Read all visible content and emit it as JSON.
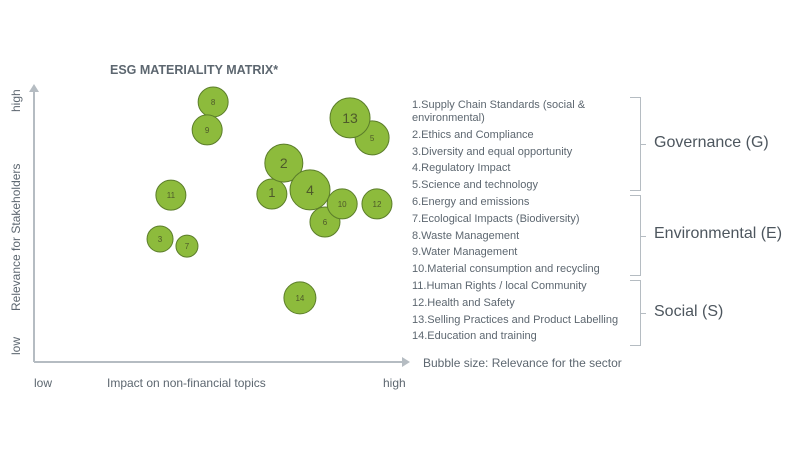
{
  "chart_data": {
    "type": "scatter",
    "subtype": "bubble",
    "title": "ESG MATERIALITY MATRIX*",
    "xlabel": "Impact on non-financial topics",
    "ylabel": "Relevance for Stakeholders",
    "x_tick_labels": [
      "low",
      "high"
    ],
    "y_tick_labels": [
      "low",
      "high"
    ],
    "xlim": [
      0,
      100
    ],
    "ylim": [
      0,
      100
    ],
    "grid": false,
    "size_label": "Bubble size: Relevance for the sector",
    "bubble_color": "#8dbb3c",
    "bubble_outline": "#5b7d2a",
    "points": [
      {
        "label": "1",
        "x": 63.6,
        "y": 61.3,
        "size": 15
      },
      {
        "label": "2",
        "x": 66.8,
        "y": 72.6,
        "size": 19
      },
      {
        "label": "3",
        "x": 33.7,
        "y": 44.9,
        "size": 13
      },
      {
        "label": "4",
        "x": 73.8,
        "y": 62.8,
        "size": 20
      },
      {
        "label": "5",
        "x": 90.4,
        "y": 81.8,
        "size": 17
      },
      {
        "label": "6",
        "x": 77.8,
        "y": 51.1,
        "size": 15
      },
      {
        "label": "7",
        "x": 40.9,
        "y": 42.3,
        "size": 11
      },
      {
        "label": "8",
        "x": 47.9,
        "y": 94.9,
        "size": 15
      },
      {
        "label": "9",
        "x": 46.3,
        "y": 84.7,
        "size": 15
      },
      {
        "label": "10",
        "x": 82.4,
        "y": 57.7,
        "size": 15
      },
      {
        "label": "11",
        "x": 36.6,
        "y": 60.9,
        "size": 15
      },
      {
        "label": "12",
        "x": 91.7,
        "y": 57.7,
        "size": 15
      },
      {
        "label": "13",
        "x": 84.5,
        "y": 89.1,
        "size": 20
      },
      {
        "label": "14",
        "x": 71.1,
        "y": 23.4,
        "size": 16
      }
    ],
    "legend": {
      "groups": [
        {
          "name": "Governance  (G)",
          "items": [
            "1.Supply Chain Standards (social & environmental)",
            "2.Ethics and Compliance",
            "3.Diversity and equal opportunity",
            "4.Regulatory Impact",
            "5.Science and technology"
          ]
        },
        {
          "name": "Environmental  (E)",
          "items": [
            "6.Energy and emissions",
            "7.Ecological Impacts (Biodiversity)",
            "8.Waste Management",
            "9.Water Management",
            "10.Material consumption and recycling"
          ]
        },
        {
          "name": "Social (S)",
          "items": [
            "11.Human Rights / local Community",
            "12.Health and Safety",
            "13.Selling Practices and Product Labelling",
            "14.Education and training"
          ]
        }
      ]
    }
  }
}
